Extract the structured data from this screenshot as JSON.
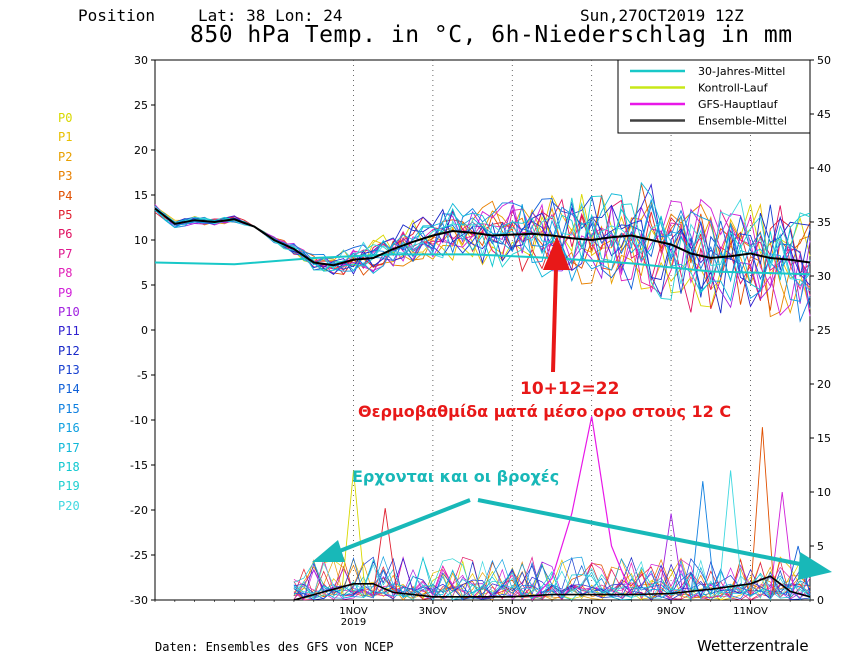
{
  "header": {
    "position_label": "Position",
    "lat_lon": "Lat: 38 Lon: 24",
    "date": "Sun,27OCT2019 12Z",
    "title": "850 hPa Temp. in °C, 6h-Niederschlag in mm"
  },
  "members": [
    {
      "label": "P0",
      "color": "#d8d800"
    },
    {
      "label": "P1",
      "color": "#e8c000"
    },
    {
      "label": "P2",
      "color": "#e8a000"
    },
    {
      "label": "P3",
      "color": "#e88000"
    },
    {
      "label": "P4",
      "color": "#e05000"
    },
    {
      "label": "P5",
      "color": "#e02030"
    },
    {
      "label": "P6",
      "color": "#e01060"
    },
    {
      "label": "P7",
      "color": "#e01890"
    },
    {
      "label": "P8",
      "color": "#e020b8"
    },
    {
      "label": "P9",
      "color": "#d020d8"
    },
    {
      "label": "P10",
      "color": "#a020e0"
    },
    {
      "label": "P11",
      "color": "#3020d0"
    },
    {
      "label": "P12",
      "color": "#1828c8"
    },
    {
      "label": "P13",
      "color": "#1840d0"
    },
    {
      "label": "P14",
      "color": "#1060d8"
    },
    {
      "label": "P15",
      "color": "#1080e0"
    },
    {
      "label": "P16",
      "color": "#10a0e0"
    },
    {
      "label": "P17",
      "color": "#10b8d8"
    },
    {
      "label": "P18",
      "color": "#10c8d0"
    },
    {
      "label": "P19",
      "color": "#20d0d0"
    },
    {
      "label": "P20",
      "color": "#40d8e0"
    }
  ],
  "footer": {
    "source": "Daten: Ensembles des GFS von NCEP",
    "brand": "Wetterzentrale"
  },
  "annotations": {
    "sum": "10+12=22",
    "temp_note": "Θερμοβαθμίδα ματά μέσο ορο στους 12 C",
    "rain_note": "Ερχονται και οι βροχές"
  },
  "colors": {
    "annotation_red": "#e81818",
    "annotation_teal": "#18b8b8",
    "climate_mean": "#18c8c8",
    "control": "#c8e818",
    "gfs": "#e818e8",
    "ensemble_mean": "#000000"
  },
  "chart_data": {
    "type": "line",
    "x_ticks": [
      {
        "label": "1NOV",
        "sub": "2019",
        "day": 5
      },
      {
        "label": "3NOV",
        "sub": "",
        "day": 7
      },
      {
        "label": "5NOV",
        "sub": "",
        "day": 9
      },
      {
        "label": "7NOV",
        "sub": "",
        "day": 11
      },
      {
        "label": "9NOV",
        "sub": "",
        "day": 13
      },
      {
        "label": "11NOV",
        "sub": "",
        "day": 15
      }
    ],
    "x_range_days": [
      0,
      16.5
    ],
    "y_left": {
      "min": -30,
      "max": 30,
      "ticks": [
        30,
        25,
        20,
        15,
        10,
        5,
        0,
        -5,
        -10,
        -15,
        -20,
        -25,
        -30
      ]
    },
    "y_right": {
      "min": 0,
      "max": 50,
      "ticks": [
        50,
        45,
        40,
        35,
        30,
        25,
        20,
        15,
        10,
        5,
        0
      ]
    },
    "legend": {
      "placement": "top-right",
      "entries": [
        {
          "name": "30-Jahres-Mittel",
          "color": "#18c8c8"
        },
        {
          "name": "Kontroll-Lauf",
          "color": "#c8e818"
        },
        {
          "name": "GFS-Hauptlauf",
          "color": "#e818e8"
        },
        {
          "name": "Ensemble-Mittel",
          "color": "#404040"
        }
      ]
    },
    "series_climate": [
      [
        0,
        7.5
      ],
      [
        2,
        7.3
      ],
      [
        4,
        8.0
      ],
      [
        6,
        8.4
      ],
      [
        8,
        8.4
      ],
      [
        10,
        8.0
      ],
      [
        12,
        7.4
      ],
      [
        14,
        6.5
      ],
      [
        16.5,
        6.2
      ]
    ],
    "series_ensemble_mean": [
      [
        0,
        13.5
      ],
      [
        0.5,
        11.8
      ],
      [
        1,
        12.2
      ],
      [
        1.5,
        12
      ],
      [
        2,
        12.3
      ],
      [
        2.5,
        11.5
      ],
      [
        3,
        10
      ],
      [
        3.5,
        9
      ],
      [
        4,
        7.5
      ],
      [
        4.5,
        7.2
      ],
      [
        5,
        7.8
      ],
      [
        5.5,
        8
      ],
      [
        6,
        9
      ],
      [
        6.5,
        9.8
      ],
      [
        7,
        10.5
      ],
      [
        7.5,
        11
      ],
      [
        8,
        10.8
      ],
      [
        8.5,
        10.5
      ],
      [
        9,
        10.6
      ],
      [
        9.5,
        10.7
      ],
      [
        10,
        10.5
      ],
      [
        10.5,
        10.2
      ],
      [
        11,
        10
      ],
      [
        11.5,
        10.3
      ],
      [
        12,
        10.5
      ],
      [
        12.5,
        10
      ],
      [
        13,
        9.5
      ],
      [
        13.5,
        8.5
      ],
      [
        14,
        8
      ],
      [
        14.5,
        8.2
      ],
      [
        15,
        8.5
      ],
      [
        15.5,
        8
      ],
      [
        16,
        7.8
      ],
      [
        16.5,
        7.5
      ]
    ],
    "precip_mean": [
      [
        3.5,
        0
      ],
      [
        4,
        0.5
      ],
      [
        4.5,
        1
      ],
      [
        5,
        1.5
      ],
      [
        5.5,
        1.5
      ],
      [
        6,
        0.7
      ],
      [
        6.5,
        0.5
      ],
      [
        7,
        0.3
      ],
      [
        8,
        0.3
      ],
      [
        9,
        0.3
      ],
      [
        10,
        0.5
      ],
      [
        11,
        0.5
      ],
      [
        12,
        0.5
      ],
      [
        13,
        0.6
      ],
      [
        14,
        1
      ],
      [
        15,
        1.5
      ],
      [
        15.5,
        2.2
      ],
      [
        16,
        0.8
      ],
      [
        16.5,
        0.3
      ]
    ],
    "precip_gfs_peak": [
      [
        9.5,
        0
      ],
      [
        10,
        2
      ],
      [
        10.5,
        8
      ],
      [
        11,
        17
      ],
      [
        11.5,
        5
      ],
      [
        12,
        0.5
      ]
    ],
    "precip_member_peaks": [
      [
        5,
        12
      ],
      [
        5.8,
        8.5
      ],
      [
        13,
        8
      ],
      [
        13.8,
        11
      ],
      [
        14.5,
        12
      ],
      [
        15.3,
        16
      ],
      [
        15.8,
        10
      ],
      [
        16.2,
        5
      ]
    ]
  }
}
